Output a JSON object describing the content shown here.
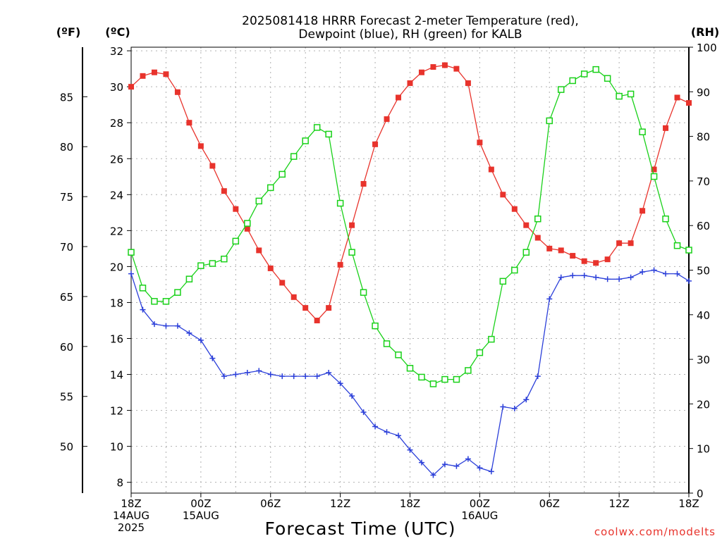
{
  "title_line1": "2025081418 HRRR Forecast 2-meter Temperature (red),",
  "title_line2": "Dewpoint (blue), RH (green) for KALB",
  "units": {
    "fahrenheit": "(ºF)",
    "celsius": "(ºC)",
    "rh": "(RH)"
  },
  "x_axis_label": "Forecast Time (UTC)",
  "credit": "coolwx.com/modelts",
  "colors": {
    "temperature": "#e8332c",
    "dewpoint": "#2b3fd9",
    "rh": "#19d119"
  },
  "chart_data": {
    "type": "line",
    "title": "2025081418 HRRR Forecast 2-meter Temperature (red), Dewpoint (blue), RH (green) for KALB",
    "xlabel": "Forecast Time (UTC)",
    "x": [
      0,
      1,
      2,
      3,
      4,
      5,
      6,
      7,
      8,
      9,
      10,
      11,
      12,
      13,
      14,
      15,
      16,
      17,
      18,
      19,
      20,
      21,
      22,
      23,
      24,
      25,
      26,
      27,
      28,
      29,
      30,
      31,
      32,
      33,
      34,
      35,
      36,
      37,
      38,
      39,
      40,
      41,
      42,
      43,
      44,
      45,
      46,
      47,
      48
    ],
    "x_unit": "hours from 2025-08-14 18Z",
    "xlim": [
      0,
      48
    ],
    "x_ticks": [
      {
        "x": 0,
        "lines": [
          "18Z",
          "14AUG",
          "2025"
        ]
      },
      {
        "x": 6,
        "lines": [
          "00Z",
          "15AUG"
        ]
      },
      {
        "x": 12,
        "lines": [
          "06Z"
        ]
      },
      {
        "x": 18,
        "lines": [
          "12Z"
        ]
      },
      {
        "x": 24,
        "lines": [
          "18Z"
        ]
      },
      {
        "x": 30,
        "lines": [
          "00Z",
          "16AUG"
        ]
      },
      {
        "x": 36,
        "lines": [
          "06Z"
        ]
      },
      {
        "x": 42,
        "lines": [
          "12Z"
        ]
      },
      {
        "x": 48,
        "lines": [
          "18Z"
        ]
      }
    ],
    "y_left_celsius": {
      "label": "(ºC)",
      "ylim": [
        7.4,
        32.2
      ],
      "ticks": [
        8,
        10,
        12,
        14,
        16,
        18,
        20,
        22,
        24,
        26,
        28,
        30,
        32
      ]
    },
    "y_far_left_fahrenheit": {
      "label": "(ºF)",
      "ticks": [
        50,
        55,
        60,
        65,
        70,
        75,
        80,
        85
      ]
    },
    "y_right_rh": {
      "label": "(RH)",
      "ylim": [
        0,
        100
      ],
      "ticks": [
        0,
        10,
        20,
        30,
        40,
        50,
        60,
        70,
        80,
        90,
        100
      ]
    },
    "grid": true,
    "series": [
      {
        "name": "Temperature",
        "axis": "celsius",
        "color": "#e8332c",
        "marker": "filled-square",
        "values": [
          30.0,
          30.6,
          30.8,
          30.7,
          29.7,
          28.0,
          26.7,
          25.6,
          24.2,
          23.2,
          22.1,
          20.9,
          19.9,
          19.1,
          18.3,
          17.7,
          17.0,
          17.7,
          20.1,
          22.3,
          24.6,
          26.8,
          28.2,
          29.4,
          30.2,
          30.8,
          31.1,
          31.2,
          31.0,
          30.2,
          26.9,
          25.4,
          24.0,
          23.2,
          22.3,
          21.6,
          21.0,
          20.9,
          20.6,
          20.3,
          20.2,
          20.4,
          21.3,
          21.3,
          23.1,
          25.4,
          27.7,
          29.4,
          29.1
        ]
      },
      {
        "name": "Dewpoint",
        "axis": "celsius",
        "color": "#2b3fd9",
        "marker": "plus",
        "values": [
          19.6,
          17.6,
          16.8,
          16.7,
          16.7,
          16.3,
          15.9,
          14.9,
          13.9,
          14.0,
          14.1,
          14.2,
          14.0,
          13.9,
          13.9,
          13.9,
          13.9,
          14.1,
          13.5,
          12.8,
          11.9,
          11.1,
          10.8,
          10.6,
          9.8,
          9.1,
          8.4,
          9.0,
          8.9,
          9.3,
          8.8,
          8.6,
          12.2,
          12.1,
          12.6,
          13.9,
          18.2,
          19.4,
          19.5,
          19.5,
          19.4,
          19.3,
          19.3,
          19.4,
          19.7,
          19.8,
          19.6,
          19.6,
          19.2
        ]
      },
      {
        "name": "RH",
        "axis": "rh",
        "color": "#19d119",
        "marker": "open-square",
        "values": [
          54,
          46,
          43,
          43,
          45,
          48,
          51,
          51.5,
          52.5,
          56.5,
          60.5,
          65.5,
          68.5,
          71.5,
          75.5,
          79,
          82,
          80.5,
          65,
          54,
          45,
          37.5,
          33.5,
          31,
          28,
          26,
          24.5,
          25.5,
          25.5,
          27.5,
          31.5,
          34.5,
          47.5,
          50,
          54,
          61.5,
          83.5,
          90.5,
          92.5,
          94,
          95,
          93,
          89,
          89.5,
          81,
          71,
          61.5,
          55.5,
          54.5
        ]
      }
    ]
  }
}
